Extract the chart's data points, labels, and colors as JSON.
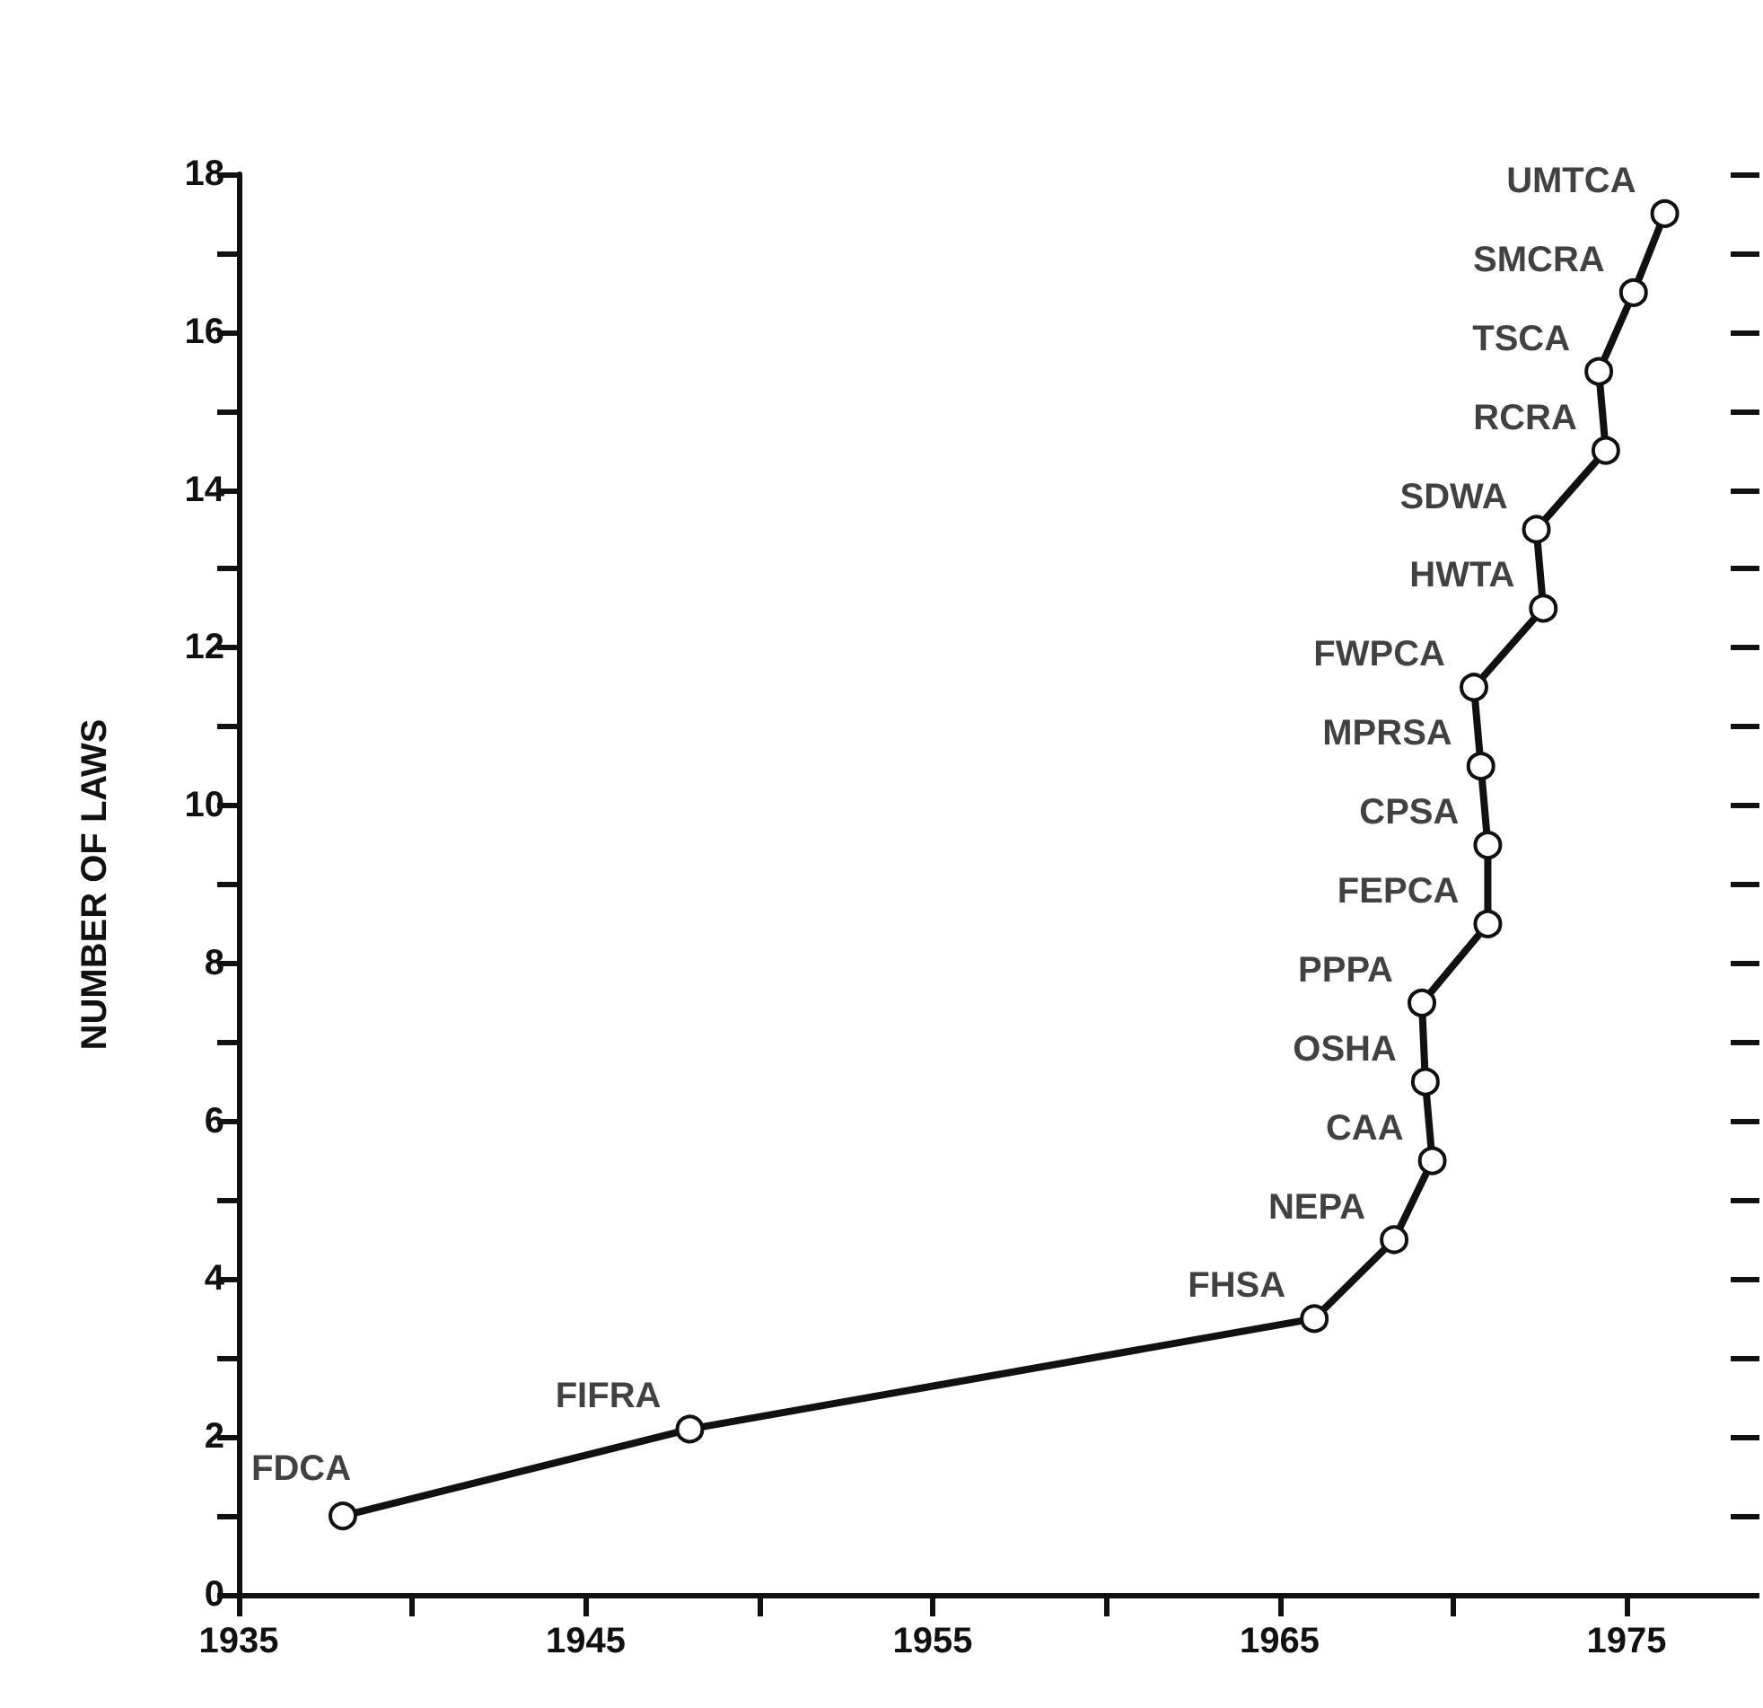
{
  "chart_data": {
    "type": "line",
    "ylabel": "NUMBER OF LAWS",
    "x": [
      1938,
      1948,
      1966,
      1968.3,
      1969.4,
      1969.2,
      1969.1,
      1971,
      1971,
      1970.8,
      1970.6,
      1972.6,
      1972.4,
      1974.4,
      1974.2,
      1975.2,
      1976.1
    ],
    "values": [
      1,
      2.1,
      3.5,
      4.5,
      5.5,
      6.5,
      7.5,
      8.5,
      9.5,
      10.5,
      11.5,
      12.5,
      13.5,
      14.5,
      15.5,
      16.5,
      17.5
    ],
    "color": "#111111",
    "marker": "circle",
    "line_style": "solid",
    "grid": false,
    "annotations": [
      {
        "text": "FDCA",
        "x": 1938,
        "y": 1
      },
      {
        "text": "FIFRA",
        "x": 1948,
        "y": 2.1
      },
      {
        "text": "FHSA",
        "x": 1966,
        "y": 3.5
      },
      {
        "text": "NEPA",
        "x": 1968.3,
        "y": 4.5
      },
      {
        "text": "CAA",
        "x": 1969.4,
        "y": 5.5
      },
      {
        "text": "OSHA",
        "x": 1969.2,
        "y": 6.5
      },
      {
        "text": "PPPA",
        "x": 1969.1,
        "y": 7.5
      },
      {
        "text": "FEPCA",
        "x": 1971,
        "y": 8.5
      },
      {
        "text": "CPSA",
        "x": 1971,
        "y": 9.5
      },
      {
        "text": "MPRSA",
        "x": 1970.8,
        "y": 10.5
      },
      {
        "text": "FWPCA",
        "x": 1970.6,
        "y": 11.5
      },
      {
        "text": "HWTA",
        "x": 1972.6,
        "y": 12.5
      },
      {
        "text": "SDWA",
        "x": 1972.4,
        "y": 13.5
      },
      {
        "text": "RCRA",
        "x": 1974.4,
        "y": 14.5
      },
      {
        "text": "TSCA",
        "x": 1974.2,
        "y": 15.5
      },
      {
        "text": "SMCRA",
        "x": 1975.2,
        "y": 16.5
      },
      {
        "text": "UMTCA",
        "x": 1976.1,
        "y": 17.5
      }
    ],
    "xlim": [
      1935,
      1978
    ],
    "xticks": [
      1935,
      {
        "value": 1940,
        "label": null
      },
      1945,
      {
        "value": 1950,
        "label": null
      },
      1955,
      {
        "value": 1960,
        "label": null
      },
      1965,
      {
        "value": 1970,
        "label": null
      },
      1975
    ],
    "ylim": [
      0,
      18
    ],
    "yticks": [
      0,
      {
        "value": 1,
        "label": null
      },
      2,
      {
        "value": 3,
        "label": null
      },
      4,
      {
        "value": 5,
        "label": null
      },
      6,
      {
        "value": 7,
        "label": null
      },
      8,
      {
        "value": 9,
        "label": null
      },
      10,
      {
        "value": 11,
        "label": null
      },
      12,
      {
        "value": 13,
        "label": null
      },
      14,
      {
        "value": 15,
        "label": null
      },
      16,
      {
        "value": 17,
        "label": null
      },
      18
    ]
  }
}
